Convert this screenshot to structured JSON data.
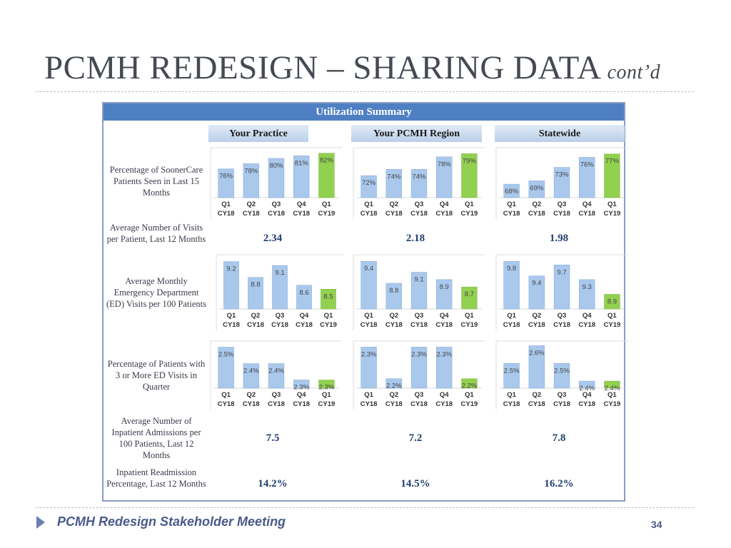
{
  "title": {
    "main": "PCMH REDESIGN – SHARING DATA",
    "sub": "cont’d"
  },
  "panel": {
    "header": "Utilization Summary",
    "columns": [
      "Your Practice",
      "Your PCMH Region",
      "Statewide"
    ],
    "rows": [
      {
        "label": "Percentage of SoonerCare Patients Seen in Last 15 Months"
      },
      {
        "label": "Average Number of Visits per Patient, Last 12 Months",
        "values": [
          "2.34",
          "2.18",
          "1.98"
        ]
      },
      {
        "label": "Average Monthly Emergency Department (ED) Visits per 100 Patients"
      },
      {
        "label": "Percentage of Patients with 3 or More ED Visits in Quarter"
      },
      {
        "label": "Average Number of Inpatient Admissions per 100 Patients, Last 12 Months",
        "values": [
          "7.5",
          "7.2",
          "7.8"
        ]
      },
      {
        "label": "Inpatient Readmission Percentage, Last 12 Months",
        "values": [
          "14.2%",
          "14.5%",
          "16.2%"
        ]
      }
    ]
  },
  "colors": {
    "bar_blue": "#a9c8ec",
    "bar_blue_edge": "#7fa7d6",
    "bar_green": "#92d050",
    "label": "#444444"
  },
  "chart_data": [
    {
      "type": "bar",
      "metric": "Percentage of SoonerCare Patients Seen in Last 15 Months",
      "group": "Your Practice",
      "categories": [
        "Q1 CY18",
        "Q2 CY18",
        "Q3 CY18",
        "Q4 CY18",
        "Q1 CY19"
      ],
      "values": [
        76,
        78,
        80,
        81,
        82
      ],
      "labels": [
        "76%",
        "78%",
        "80%",
        "81%",
        "82%"
      ],
      "ylim": [
        65,
        83
      ],
      "highlight_last": true
    },
    {
      "type": "bar",
      "metric": "Percentage of SoonerCare Patients Seen in Last 15 Months",
      "group": "Your PCMH Region",
      "categories": [
        "Q1 CY18",
        "Q2 CY18",
        "Q3 CY18",
        "Q4 CY18",
        "Q1 CY19"
      ],
      "values": [
        72,
        74,
        74,
        78,
        79
      ],
      "labels": [
        "72%",
        "74%",
        "74%",
        "78%",
        "79%"
      ],
      "ylim": [
        65,
        80
      ],
      "highlight_last": true
    },
    {
      "type": "bar",
      "metric": "Percentage of SoonerCare Patients Seen in Last 15 Months",
      "group": "Statewide",
      "categories": [
        "Q1 CY18",
        "Q2 CY18",
        "Q3 CY18",
        "Q4 CY18",
        "Q1 CY19"
      ],
      "values": [
        68,
        69,
        73,
        76,
        77
      ],
      "labels": [
        "68%",
        "69%",
        "73%",
        "76%",
        "77%"
      ],
      "ylim": [
        64,
        78
      ],
      "highlight_last": true
    },
    {
      "type": "bar",
      "metric": "Average Monthly Emergency Department (ED) Visits per 100 Patients",
      "group": "Your Practice",
      "categories": [
        "Q1 CY18",
        "Q2 CY18",
        "Q3 CY18",
        "Q4 CY18",
        "Q1 CY19"
      ],
      "values": [
        9.2,
        8.8,
        9.1,
        8.6,
        8.5
      ],
      "labels": [
        "9.2",
        "8.8",
        "9.1",
        "8.6",
        "8.5"
      ],
      "ylim": [
        8.0,
        9.3
      ],
      "highlight_last": true
    },
    {
      "type": "bar",
      "metric": "Average Monthly Emergency Department (ED) Visits per 100 Patients",
      "group": "Your PCMH Region",
      "categories": [
        "Q1 CY18",
        "Q2 CY18",
        "Q3 CY18",
        "Q4 CY18",
        "Q1 CY19"
      ],
      "values": [
        9.4,
        8.8,
        9.1,
        8.9,
        8.7
      ],
      "labels": [
        "9.4",
        "8.8",
        "9.1",
        "8.9",
        "8.7"
      ],
      "ylim": [
        8.1,
        9.5
      ],
      "highlight_last": true
    },
    {
      "type": "bar",
      "metric": "Average Monthly Emergency Department (ED) Visits per 100 Patients",
      "group": "Statewide",
      "categories": [
        "Q1 CY18",
        "Q2 CY18",
        "Q3 CY18",
        "Q4 CY18",
        "Q1 CY19"
      ],
      "values": [
        9.8,
        9.4,
        9.7,
        9.3,
        8.9
      ],
      "labels": [
        "9.8",
        "9.4",
        "9.7",
        "9.3",
        "8.9"
      ],
      "ylim": [
        8.5,
        9.9
      ],
      "highlight_last": true
    },
    {
      "type": "bar",
      "metric": "Percentage of Patients with 3 or More ED Visits in Quarter",
      "group": "Your Practice",
      "categories": [
        "Q1 CY18",
        "Q2 CY18",
        "Q3 CY18",
        "Q4 CY18",
        "Q1 CY19"
      ],
      "values": [
        2.5,
        2.4,
        2.4,
        2.3,
        2.3
      ],
      "labels": [
        "2.5%",
        "2.4%",
        "2.4%",
        "2.3%",
        "2.3%"
      ],
      "ylim": [
        2.25,
        2.52
      ],
      "highlight_last": true
    },
    {
      "type": "bar",
      "metric": "Percentage of Patients with 3 or More ED Visits in Quarter",
      "group": "Your PCMH Region",
      "categories": [
        "Q1 CY18",
        "Q2 CY18",
        "Q3 CY18",
        "Q4 CY18",
        "Q1 CY19"
      ],
      "values": [
        2.3,
        2.2,
        2.3,
        2.3,
        2.2
      ],
      "labels": [
        "2.3%",
        "2.2%",
        "2.3%",
        "2.3%",
        "2.2%"
      ],
      "ylim": [
        2.17,
        2.31
      ],
      "highlight_last": true
    },
    {
      "type": "bar",
      "metric": "Percentage of Patients with 3 or More ED Visits in Quarter",
      "group": "Statewide",
      "categories": [
        "Q1 CY18",
        "Q2 CY18",
        "Q3 CY18",
        "Q4 CY18",
        "Q1 CY19"
      ],
      "values": [
        2.5,
        2.6,
        2.5,
        2.4,
        2.4
      ],
      "labels": [
        "2.5%",
        "2.6%",
        "2.5%",
        "2.4%",
        "2.4%"
      ],
      "ylim": [
        2.36,
        2.61
      ],
      "highlight_last": true
    }
  ],
  "footer": {
    "text": "PCMH Redesign Stakeholder Meeting",
    "page": "34"
  }
}
